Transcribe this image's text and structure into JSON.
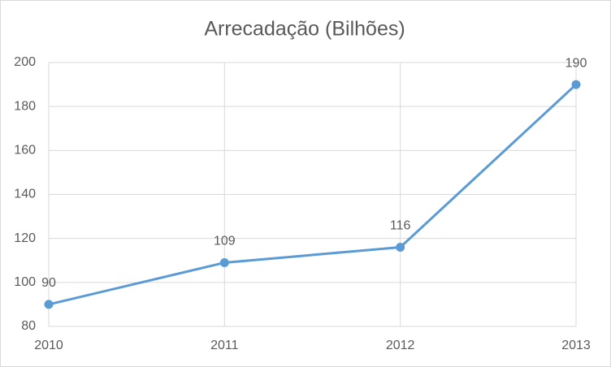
{
  "chart_data": {
    "type": "line",
    "title": "Arrecadação (Bilhões)",
    "x": [
      2010,
      2011,
      2012,
      2013
    ],
    "series": [
      {
        "name": "Arrecadação",
        "color": "#5b9bd5",
        "values": [
          90,
          109,
          116,
          190
        ]
      }
    ],
    "xlim": [
      2010,
      2013
    ],
    "xticks": [
      2010,
      2011,
      2012,
      2013
    ],
    "ylim": [
      80,
      200
    ],
    "yticks": [
      80,
      100,
      120,
      140,
      160,
      180,
      200
    ],
    "grid": true,
    "data_labels": true
  }
}
